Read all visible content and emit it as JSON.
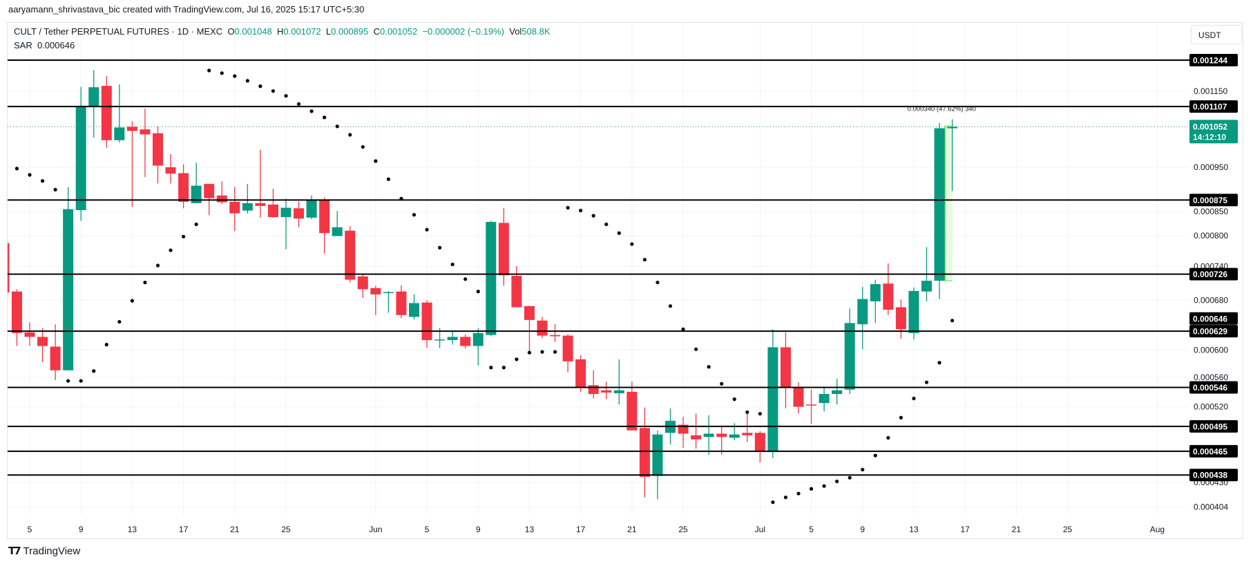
{
  "credit": "aaryamann_shrivastava_bic created with TradingView.com, Jul 16, 2025 15:17 UTC+5:30",
  "legend": {
    "symbol": "CULT / Tether PERPETUAL FUTURES · 1D · MEXC",
    "o_label": "O",
    "o_value": "0.001048",
    "h_label": "H",
    "h_value": "0.001072",
    "l_label": "L",
    "l_value": "0.000895",
    "c_label": "C",
    "c_value": "0.001052",
    "change": "−0.000002 (−0.19%)",
    "vol_label": "Vol",
    "vol_value": "508.8K",
    "sar_label": "SAR",
    "sar_value": "0.000646"
  },
  "currency_button": "USDT",
  "footer_logo": "TradingView",
  "colors": {
    "up": "#089981",
    "down": "#f23645",
    "sar": "#000000",
    "level": "#000000",
    "grid": "#f0f3fa",
    "measure_fill": "#ddfbd4",
    "measure_border": "#57e045"
  },
  "chart_data": {
    "type": "candlestick",
    "interval": "1D",
    "y_scale": "log",
    "ylim": [
      0.000395,
      0.00126
    ],
    "grid": true,
    "x_ticks": [
      {
        "date": "2025-05-05",
        "label": "5"
      },
      {
        "date": "2025-05-09",
        "label": "9"
      },
      {
        "date": "2025-05-13",
        "label": "13"
      },
      {
        "date": "2025-05-17",
        "label": "17"
      },
      {
        "date": "2025-05-21",
        "label": "21"
      },
      {
        "date": "2025-05-25",
        "label": "25"
      },
      {
        "date": "2025-06-01",
        "label": "Jun"
      },
      {
        "date": "2025-06-05",
        "label": "5"
      },
      {
        "date": "2025-06-09",
        "label": "9"
      },
      {
        "date": "2025-06-13",
        "label": "13"
      },
      {
        "date": "2025-06-17",
        "label": "17"
      },
      {
        "date": "2025-06-21",
        "label": "21"
      },
      {
        "date": "2025-06-25",
        "label": "25"
      },
      {
        "date": "2025-07-01",
        "label": "Jul"
      },
      {
        "date": "2025-07-05",
        "label": "5"
      },
      {
        "date": "2025-07-09",
        "label": "9"
      },
      {
        "date": "2025-07-13",
        "label": "13"
      },
      {
        "date": "2025-07-17",
        "label": "17"
      },
      {
        "date": "2025-07-21",
        "label": "21"
      },
      {
        "date": "2025-07-25",
        "label": "25"
      },
      {
        "date": "2025-08-01",
        "label": "Aug"
      }
    ],
    "y_ticks": [
      "0.001150",
      "0.000950",
      "0.000850",
      "0.000800",
      "0.000740",
      "0.000680",
      "0.000600",
      "0.000560",
      "0.000520",
      "0.000430",
      "0.000404"
    ],
    "levels": [
      "0.001244",
      "0.001107",
      "0.000875",
      "0.000726",
      "0.000629",
      "0.000546",
      "0.000495",
      "0.000465",
      "0.000438"
    ],
    "sar_label_value": "0.000646",
    "last_price": {
      "value": "0.001052",
      "countdown": "14:12:10"
    },
    "measure": {
      "from": 0.000714,
      "to": 0.001054,
      "start_date": "2025-07-15",
      "end_date": "2025-07-16",
      "text": "0.000340 (47.62%) 340"
    },
    "fields": [
      "date",
      "open",
      "high",
      "low",
      "close",
      "sar"
    ],
    "candles": [
      [
        "2025-05-03",
        0.000785,
        0.00079,
        0.00069,
        0.000693,
        null
      ],
      [
        "2025-05-04",
        0.000695,
        0.000699,
        0.000606,
        0.000626,
        0.000947
      ],
      [
        "2025-05-05",
        0.000627,
        0.000643,
        0.000606,
        0.00062,
        0.000932
      ],
      [
        "2025-05-06",
        0.00062,
        0.000634,
        0.000582,
        0.000606,
        0.000918
      ],
      [
        "2025-05-07",
        0.000605,
        0.00064,
        0.000556,
        0.00057,
        0.000898
      ],
      [
        "2025-05-08",
        0.00057,
        0.000904,
        0.00057,
        0.000855,
        0.000555
      ],
      [
        "2025-05-09",
        0.000853,
        0.001163,
        0.00083,
        0.001109,
        0.000555
      ],
      [
        "2025-05-10",
        0.001108,
        0.001213,
        0.001024,
        0.001162,
        0.000569
      ],
      [
        "2025-05-11",
        0.001166,
        0.001195,
        0.000998,
        0.001017,
        0.000608
      ],
      [
        "2025-05-12",
        0.001017,
        0.00117,
        0.001011,
        0.00105,
        0.000644
      ],
      [
        "2025-05-13",
        0.001052,
        0.001066,
        0.00086,
        0.001041,
        0.000679
      ],
      [
        "2025-05-14",
        0.001045,
        0.001101,
        0.000927,
        0.001032,
        0.000711
      ],
      [
        "2025-05-15",
        0.001035,
        0.001053,
        0.000912,
        0.000954,
        0.000742
      ],
      [
        "2025-05-16",
        0.00095,
        0.000982,
        0.000912,
        0.000935,
        0.000771
      ],
      [
        "2025-05-17",
        0.000936,
        0.000957,
        0.000857,
        0.000871,
        0.000798
      ],
      [
        "2025-05-18",
        0.000868,
        0.000961,
        0.000868,
        0.000907,
        0.000823
      ],
      [
        "2025-05-19",
        0.000911,
        0.000911,
        0.000842,
        0.000879,
        0.001212
      ],
      [
        "2025-05-20",
        0.000885,
        0.000917,
        0.000866,
        0.00087,
        0.001204
      ],
      [
        "2025-05-21",
        0.000871,
        0.000904,
        0.000809,
        0.000846,
        0.001195
      ],
      [
        "2025-05-22",
        0.000852,
        0.000911,
        0.000846,
        0.000868,
        0.001181
      ],
      [
        "2025-05-23",
        0.000868,
        0.000993,
        0.000837,
        0.000862,
        0.001165
      ],
      [
        "2025-05-24",
        0.000865,
        0.0009,
        0.000837,
        0.000838,
        0.001151
      ],
      [
        "2025-05-25",
        0.000838,
        0.000878,
        0.000773,
        0.000858,
        0.001137
      ],
      [
        "2025-05-26",
        0.000857,
        0.000872,
        0.000817,
        0.000835,
        0.001114
      ],
      [
        "2025-05-27",
        0.000837,
        0.000885,
        0.000834,
        0.000876,
        0.001094
      ],
      [
        "2025-05-28",
        0.000874,
        0.00088,
        0.000765,
        0.000805,
        0.001077
      ],
      [
        "2025-05-29",
        0.000799,
        0.000851,
        0.000799,
        0.000817,
        0.001053
      ],
      [
        "2025-05-30",
        0.00081,
        0.000819,
        0.000711,
        0.000716,
        0.001031
      ],
      [
        "2025-05-31",
        0.000722,
        0.000725,
        0.000684,
        0.000699,
        0.001
      ],
      [
        "2025-06-01",
        0.000701,
        0.000705,
        0.000655,
        0.00069,
        0.000965
      ],
      [
        "2025-06-02",
        0.000693,
        0.000696,
        0.000659,
        0.000694,
        0.000922
      ],
      [
        "2025-06-03",
        0.000695,
        0.000706,
        0.00065,
        0.000655,
        0.000878
      ],
      [
        "2025-06-04",
        0.000652,
        0.00069,
        0.000648,
        0.000675,
        0.000843
      ],
      [
        "2025-06-05",
        0.000676,
        0.00068,
        0.000603,
        0.000615,
        0.000812
      ],
      [
        "2025-06-06",
        0.000615,
        0.000634,
        0.000603,
        0.000616,
        0.000776
      ],
      [
        "2025-06-07",
        0.000615,
        0.000628,
        0.000608,
        0.00062,
        0.000744
      ],
      [
        "2025-06-08",
        0.00062,
        0.000624,
        0.000602,
        0.000606,
        0.000717
      ],
      [
        "2025-06-09",
        0.000606,
        0.000634,
        0.000577,
        0.000626,
        0.000695
      ],
      [
        "2025-06-10",
        0.000623,
        0.00083,
        0.000621,
        0.000828,
        0.000574
      ],
      [
        "2025-06-11",
        0.000826,
        0.000858,
        0.000705,
        0.000724,
        0.000574
      ],
      [
        "2025-06-12",
        0.000723,
        0.000741,
        0.000668,
        0.000668,
        0.000586
      ],
      [
        "2025-06-13",
        0.00067,
        0.00067,
        0.000596,
        0.000647,
        0.000596
      ],
      [
        "2025-06-14",
        0.000646,
        0.000652,
        0.000618,
        0.000622,
        0.000597
      ],
      [
        "2025-06-15",
        0.000623,
        0.00064,
        0.000612,
        0.000621,
        0.000597
      ],
      [
        "2025-06-16",
        0.000622,
        0.000624,
        0.000567,
        0.000583,
        0.000858
      ],
      [
        "2025-06-17",
        0.000586,
        0.000592,
        0.00054,
        0.000546,
        0.000852
      ],
      [
        "2025-06-18",
        0.000549,
        0.00057,
        0.000531,
        0.000537,
        0.000841
      ],
      [
        "2025-06-19",
        0.000542,
        0.000554,
        0.00053,
        0.000539,
        0.000823
      ],
      [
        "2025-06-20",
        0.000538,
        0.000586,
        0.000523,
        0.000542,
        0.000805
      ],
      [
        "2025-06-21",
        0.00054,
        0.000554,
        0.00049,
        0.00049,
        0.000783
      ],
      [
        "2025-06-22",
        0.000493,
        0.000519,
        0.000414,
        0.000436,
        0.000753
      ],
      [
        "2025-06-23",
        0.000437,
        0.00049,
        0.000412,
        0.000485,
        0.000711
      ],
      [
        "2025-06-24",
        0.000487,
        0.000518,
        0.000473,
        0.000502,
        0.00067
      ],
      [
        "2025-06-25",
        0.000497,
        0.000507,
        0.000469,
        0.000486,
        0.000632
      ],
      [
        "2025-06-26",
        0.000484,
        0.000511,
        0.000468,
        0.000479,
        0.000601
      ],
      [
        "2025-06-27",
        0.000482,
        0.000509,
        0.000461,
        0.000486,
        0.000575
      ],
      [
        "2025-06-28",
        0.000486,
        0.000496,
        0.000461,
        0.000482,
        0.000551
      ],
      [
        "2025-06-29",
        0.000481,
        0.000499,
        0.000478,
        0.000485,
        0.00053
      ],
      [
        "2025-06-30",
        0.000487,
        0.000511,
        0.000476,
        0.000484,
        0.000513
      ],
      [
        "2025-07-01",
        0.000487,
        0.000489,
        0.000452,
        0.000465,
        0.000511
      ],
      [
        "2025-07-02",
        0.000464,
        0.000632,
        0.000457,
        0.000604,
        0.000409
      ],
      [
        "2025-07-03",
        0.000604,
        0.000627,
        0.000518,
        0.000546,
        0.000414
      ],
      [
        "2025-07-04",
        0.000546,
        0.000553,
        0.000511,
        0.00052,
        0.000418
      ],
      [
        "2025-07-05",
        0.000523,
        0.000543,
        0.000498,
        0.000522,
        0.000423
      ],
      [
        "2025-07-06",
        0.000525,
        0.000547,
        0.000514,
        0.000537,
        0.000426
      ],
      [
        "2025-07-07",
        0.000537,
        0.000558,
        0.000523,
        0.000542,
        0.000431
      ],
      [
        "2025-07-08",
        0.000543,
        0.000666,
        0.000537,
        0.000642,
        0.000435
      ],
      [
        "2025-07-09",
        0.00064,
        0.000703,
        0.000601,
        0.000682,
        0.000444
      ],
      [
        "2025-07-10",
        0.000678,
        0.000716,
        0.000642,
        0.000708,
        0.00046
      ],
      [
        "2025-07-11",
        0.000709,
        0.000746,
        0.000655,
        0.000664,
        0.000481
      ],
      [
        "2025-07-12",
        0.000668,
        0.000681,
        0.000617,
        0.000632,
        0.000506
      ],
      [
        "2025-07-13",
        0.000626,
        0.000702,
        0.000616,
        0.000696,
        0.000531
      ],
      [
        "2025-07-14",
        0.000695,
        0.000777,
        0.000678,
        0.000714,
        0.000553
      ],
      [
        "2025-07-15",
        0.000714,
        0.001062,
        0.000682,
        0.001048,
        0.000581
      ],
      [
        "2025-07-16",
        0.001048,
        0.001072,
        0.000895,
        0.001052,
        0.000646
      ]
    ]
  }
}
